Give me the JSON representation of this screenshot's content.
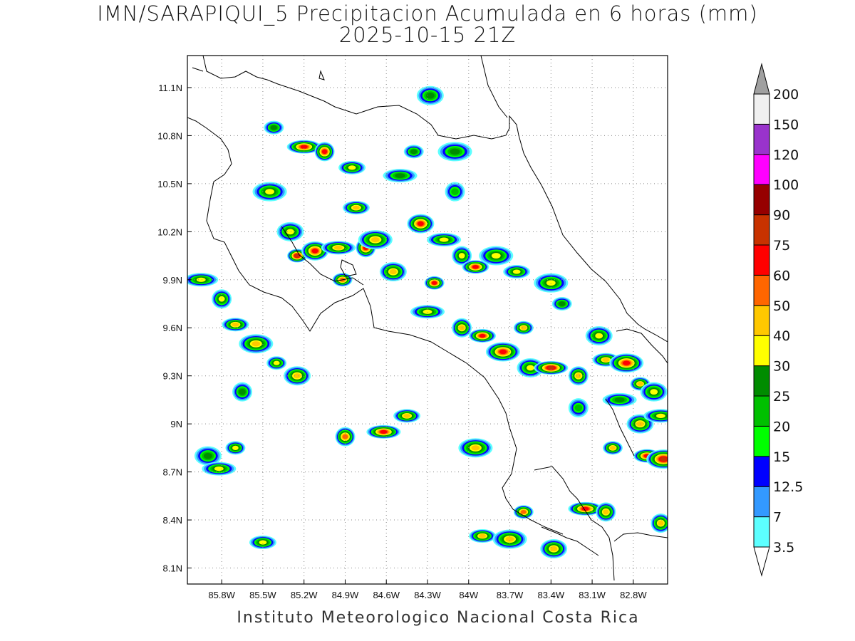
{
  "title": {
    "line1": "IMN/SARAPIQUI_5 Precipitacion Acumulada en 6 horas (mm)",
    "line2": "2025-10-15 21Z"
  },
  "footer": "Instituto Meteorologico Nacional Costa Rica",
  "map": {
    "lon_range": [
      -86.05,
      -82.55
    ],
    "lat_range": [
      8.0,
      11.3
    ],
    "lon_ticks": [
      {
        "value": -85.8,
        "label": "85.8W"
      },
      {
        "value": -85.5,
        "label": "85.5W"
      },
      {
        "value": -85.2,
        "label": "85.2W"
      },
      {
        "value": -84.9,
        "label": "84.9W"
      },
      {
        "value": -84.6,
        "label": "84.6W"
      },
      {
        "value": -84.3,
        "label": "84.3W"
      },
      {
        "value": -84.0,
        "label": "84W"
      },
      {
        "value": -83.7,
        "label": "83.7W"
      },
      {
        "value": -83.4,
        "label": "83.4W"
      },
      {
        "value": -83.1,
        "label": "83.1W"
      },
      {
        "value": -82.8,
        "label": "82.8W"
      }
    ],
    "lat_ticks": [
      {
        "value": 11.1,
        "label": "11.1N"
      },
      {
        "value": 10.8,
        "label": "10.8N"
      },
      {
        "value": 10.5,
        "label": "10.5N"
      },
      {
        "value": 10.2,
        "label": "10.2N"
      },
      {
        "value": 9.9,
        "label": "9.9N"
      },
      {
        "value": 9.6,
        "label": "9.6N"
      },
      {
        "value": 9.3,
        "label": "9.3N"
      },
      {
        "value": 9.0,
        "label": "9N"
      },
      {
        "value": 8.7,
        "label": "8.7N"
      },
      {
        "value": 8.4,
        "label": "8.4N"
      },
      {
        "value": 8.1,
        "label": "8.1N"
      }
    ],
    "grid": true
  },
  "colorbar": {
    "levels": [
      "3.5",
      "7",
      "12.5",
      "15",
      "20",
      "25",
      "30",
      "40",
      "50",
      "60",
      "75",
      "90",
      "100",
      "120",
      "150",
      "200"
    ],
    "colors": [
      "#ffffff",
      "#5cffff",
      "#3399ff",
      "#0000ff",
      "#00ff00",
      "#00c000",
      "#008c00",
      "#ffff00",
      "#ffc800",
      "#ff6600",
      "#ff0000",
      "#c83200",
      "#960000",
      "#ff00ff",
      "#9933cc",
      "#f0f0f0",
      "#a0a0a0"
    ]
  },
  "precip_cells": [
    {
      "lon": -85.25,
      "lat": 10.05,
      "max": 75
    },
    {
      "lon": -85.12,
      "lat": 10.08,
      "max": 60
    },
    {
      "lon": -84.95,
      "lat": 10.1,
      "max": 40
    },
    {
      "lon": -84.75,
      "lat": 10.1,
      "max": 60
    },
    {
      "lon": -84.82,
      "lat": 10.35,
      "max": 40
    },
    {
      "lon": -84.68,
      "lat": 10.15,
      "max": 40
    },
    {
      "lon": -84.92,
      "lat": 9.9,
      "max": 50
    },
    {
      "lon": -85.3,
      "lat": 10.2,
      "max": 30
    },
    {
      "lon": -85.2,
      "lat": 10.73,
      "max": 60
    },
    {
      "lon": -85.05,
      "lat": 10.7,
      "max": 60
    },
    {
      "lon": -84.85,
      "lat": 10.6,
      "max": 30
    },
    {
      "lon": -85.45,
      "lat": 10.45,
      "max": 30
    },
    {
      "lon": -85.42,
      "lat": 10.85,
      "max": 25
    },
    {
      "lon": -84.35,
      "lat": 10.25,
      "max": 60
    },
    {
      "lon": -84.18,
      "lat": 10.15,
      "max": 30
    },
    {
      "lon": -84.05,
      "lat": 10.05,
      "max": 30
    },
    {
      "lon": -83.95,
      "lat": 9.98,
      "max": 60
    },
    {
      "lon": -83.8,
      "lat": 10.05,
      "max": 30
    },
    {
      "lon": -84.25,
      "lat": 9.88,
      "max": 60
    },
    {
      "lon": -84.55,
      "lat": 9.95,
      "max": 40
    },
    {
      "lon": -85.95,
      "lat": 9.9,
      "max": 30
    },
    {
      "lon": -85.8,
      "lat": 9.78,
      "max": 30
    },
    {
      "lon": -85.7,
      "lat": 9.62,
      "max": 40
    },
    {
      "lon": -85.55,
      "lat": 9.5,
      "max": 40
    },
    {
      "lon": -85.4,
      "lat": 9.38,
      "max": 30
    },
    {
      "lon": -85.25,
      "lat": 9.3,
      "max": 40
    },
    {
      "lon": -84.3,
      "lat": 9.7,
      "max": 30
    },
    {
      "lon": -84.05,
      "lat": 9.6,
      "max": 40
    },
    {
      "lon": -83.9,
      "lat": 9.55,
      "max": 60
    },
    {
      "lon": -83.75,
      "lat": 9.45,
      "max": 60
    },
    {
      "lon": -83.6,
      "lat": 9.6,
      "max": 40
    },
    {
      "lon": -83.55,
      "lat": 9.35,
      "max": 30
    },
    {
      "lon": -83.4,
      "lat": 9.35,
      "max": 75
    },
    {
      "lon": -83.2,
      "lat": 9.3,
      "max": 40
    },
    {
      "lon": -83.0,
      "lat": 9.4,
      "max": 40
    },
    {
      "lon": -82.85,
      "lat": 9.38,
      "max": 60
    },
    {
      "lon": -82.75,
      "lat": 9.25,
      "max": 40
    },
    {
      "lon": -82.65,
      "lat": 9.2,
      "max": 30
    },
    {
      "lon": -84.62,
      "lat": 8.95,
      "max": 60
    },
    {
      "lon": -84.9,
      "lat": 8.92,
      "max": 50
    },
    {
      "lon": -84.45,
      "lat": 9.05,
      "max": 40
    },
    {
      "lon": -83.95,
      "lat": 8.85,
      "max": 40
    },
    {
      "lon": -85.7,
      "lat": 8.85,
      "max": 30
    },
    {
      "lon": -85.9,
      "lat": 8.8,
      "max": 25
    },
    {
      "lon": -85.82,
      "lat": 8.72,
      "max": 30
    },
    {
      "lon": -85.65,
      "lat": 9.2,
      "max": 25
    },
    {
      "lon": -83.9,
      "lat": 8.3,
      "max": 40
    },
    {
      "lon": -83.7,
      "lat": 8.28,
      "max": 40
    },
    {
      "lon": -83.6,
      "lat": 8.45,
      "max": 50
    },
    {
      "lon": -83.38,
      "lat": 8.22,
      "max": 40
    },
    {
      "lon": -83.15,
      "lat": 8.47,
      "max": 60
    },
    {
      "lon": -83.0,
      "lat": 8.45,
      "max": 40
    },
    {
      "lon": -82.7,
      "lat": 8.8,
      "max": 60
    },
    {
      "lon": -82.58,
      "lat": 8.78,
      "max": 75
    },
    {
      "lon": -82.95,
      "lat": 8.85,
      "max": 40
    },
    {
      "lon": -82.75,
      "lat": 9.0,
      "max": 40
    },
    {
      "lon": -82.6,
      "lat": 9.05,
      "max": 30
    },
    {
      "lon": -82.6,
      "lat": 8.38,
      "max": 40
    },
    {
      "lon": -85.5,
      "lat": 8.26,
      "max": 30
    },
    {
      "lon": -84.1,
      "lat": 10.7,
      "max": 25
    },
    {
      "lon": -84.4,
      "lat": 10.7,
      "max": 25
    },
    {
      "lon": -84.28,
      "lat": 11.05,
      "max": 25
    },
    {
      "lon": -84.5,
      "lat": 10.55,
      "max": 25
    },
    {
      "lon": -84.1,
      "lat": 10.45,
      "max": 20
    },
    {
      "lon": -83.65,
      "lat": 9.95,
      "max": 30
    },
    {
      "lon": -83.4,
      "lat": 9.88,
      "max": 30
    },
    {
      "lon": -83.32,
      "lat": 9.75,
      "max": 25
    },
    {
      "lon": -83.05,
      "lat": 9.55,
      "max": 30
    },
    {
      "lon": -82.9,
      "lat": 9.15,
      "max": 25
    },
    {
      "lon": -83.2,
      "lat": 9.1,
      "max": 20
    }
  ]
}
